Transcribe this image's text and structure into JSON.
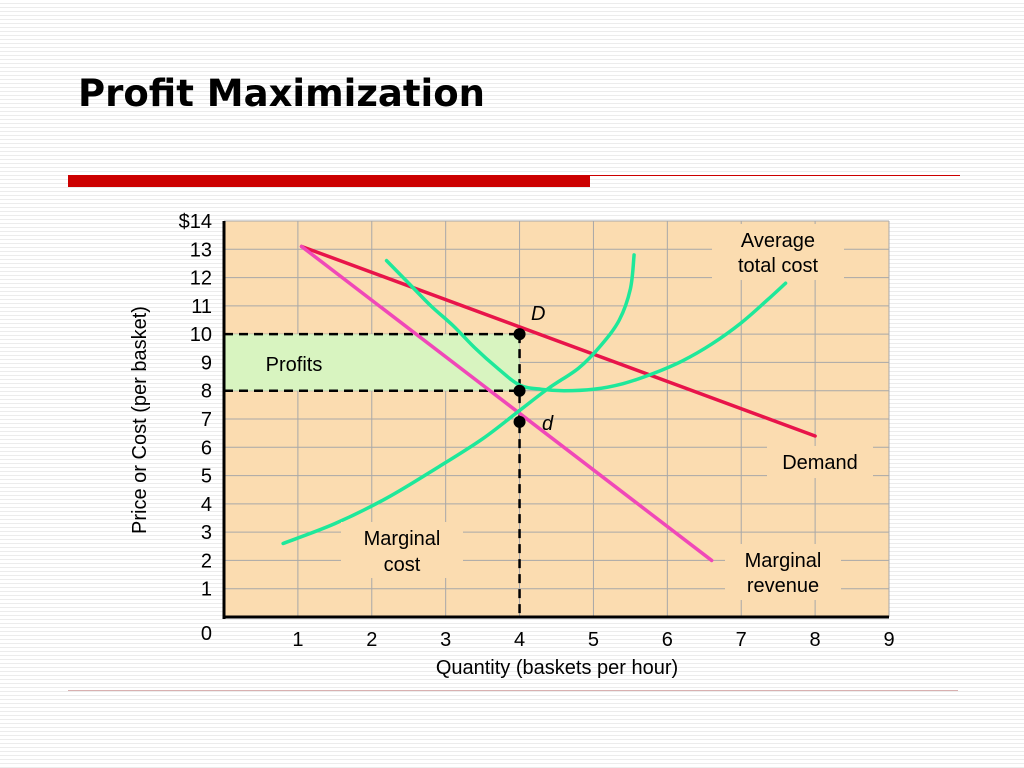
{
  "slide": {
    "title": "Profit Maximization"
  },
  "chart_data": {
    "type": "line",
    "title": "",
    "xlabel": "Quantity (baskets per hour)",
    "ylabel": "Price or Cost (per  basket)",
    "xlim": [
      0,
      9
    ],
    "ylim": [
      0,
      14
    ],
    "x_ticks": [
      "1",
      "2",
      "3",
      "4",
      "5",
      "6",
      "7",
      "8",
      "9"
    ],
    "y_ticks": [
      "1",
      "2",
      "3",
      "4",
      "5",
      "6",
      "7",
      "8",
      "9",
      "10",
      "11",
      "12",
      "13",
      "$14"
    ],
    "origin_label": "0",
    "grid": true,
    "colors": {
      "plot_bg": "#fbdcb0",
      "grid": "#a8a8a8",
      "demand": "#e8144a",
      "marginal_revenue": "#f048b8",
      "cost_curves": "#1ee89a",
      "profit_area": "#d8f4c0"
    },
    "series": [
      {
        "name": "Demand",
        "color": "#e8144a",
        "points": [
          [
            1.05,
            13.1
          ],
          [
            8.0,
            6.4
          ]
        ]
      },
      {
        "name": "Marginal revenue",
        "color": "#f048b8",
        "points": [
          [
            1.05,
            13.1
          ],
          [
            6.6,
            2.0
          ]
        ]
      },
      {
        "name": "Average total cost",
        "color": "#1ee89a",
        "points": [
          [
            2.2,
            12.6
          ],
          [
            2.5,
            11.8
          ],
          [
            2.8,
            11.0
          ],
          [
            3.1,
            10.3
          ],
          [
            3.4,
            9.5
          ],
          [
            3.7,
            8.8
          ],
          [
            4.0,
            8.2
          ],
          [
            4.3,
            8.05
          ],
          [
            4.6,
            8.0
          ],
          [
            5.0,
            8.05
          ],
          [
            5.4,
            8.25
          ],
          [
            5.8,
            8.6
          ],
          [
            6.2,
            9.05
          ],
          [
            6.6,
            9.65
          ],
          [
            7.0,
            10.4
          ],
          [
            7.35,
            11.2
          ],
          [
            7.6,
            11.8
          ]
        ]
      },
      {
        "name": "Marginal cost",
        "color": "#1ee89a",
        "points": [
          [
            0.8,
            2.6
          ],
          [
            1.5,
            3.3
          ],
          [
            2.2,
            4.2
          ],
          [
            2.9,
            5.3
          ],
          [
            3.5,
            6.3
          ],
          [
            4.0,
            7.3
          ],
          [
            4.4,
            8.1
          ],
          [
            4.8,
            8.8
          ],
          [
            5.1,
            9.6
          ],
          [
            5.35,
            10.5
          ],
          [
            5.5,
            11.6
          ],
          [
            5.55,
            12.8
          ]
        ]
      }
    ],
    "points": [
      {
        "label": "D",
        "x": 4,
        "y": 10
      },
      {
        "label": "",
        "x": 4,
        "y": 8
      },
      {
        "label": "d",
        "x": 4,
        "y": 6.9
      }
    ],
    "guides": [
      {
        "from": [
          0,
          10
        ],
        "to": [
          4,
          10
        ]
      },
      {
        "from": [
          0,
          8
        ],
        "to": [
          4,
          8
        ]
      },
      {
        "from": [
          4,
          10
        ],
        "to": [
          4,
          0
        ]
      }
    ],
    "profit_area": {
      "x": [
        0,
        4
      ],
      "y": [
        8,
        10
      ],
      "label": "Profits"
    },
    "annotations": [
      {
        "id": "average-total-cost",
        "lines": [
          "Average",
          "total cost"
        ]
      },
      {
        "id": "demand",
        "lines": [
          "Demand"
        ]
      },
      {
        "id": "marginal-cost",
        "lines": [
          "Marginal",
          "cost"
        ]
      },
      {
        "id": "marginal-revenue",
        "lines": [
          "Marginal",
          "revenue"
        ]
      }
    ]
  }
}
